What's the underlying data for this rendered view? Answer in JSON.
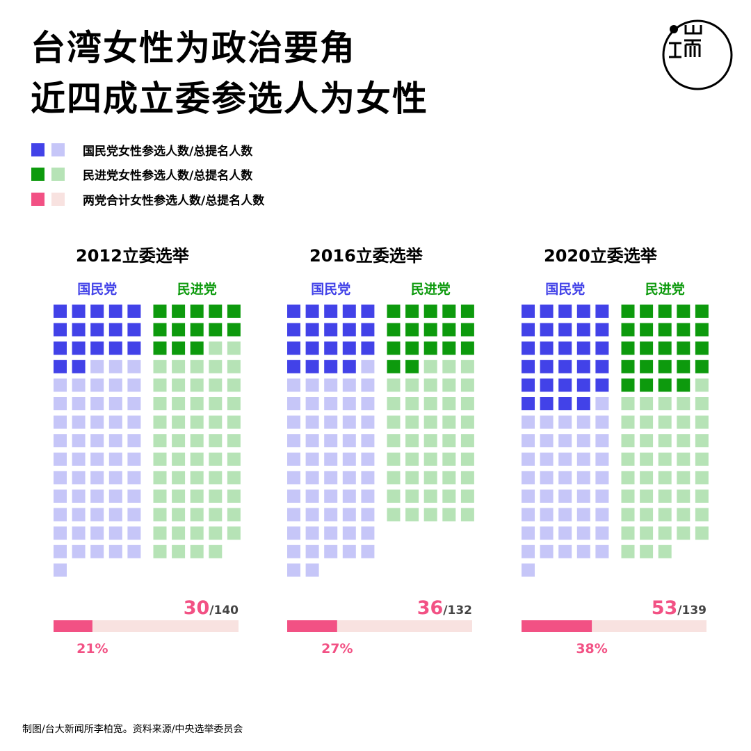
{
  "title": {
    "line1": "台湾女性为政治要角",
    "line2": "近四成立委参选人为女性"
  },
  "legend": [
    {
      "label": "国民党女性参选人数/总提名人数",
      "dark": "#4242e8",
      "light": "#c6c6f8"
    },
    {
      "label": "民进党女性参选人数/总提名人数",
      "dark": "#0d9a0d",
      "light": "#b6e3b6"
    },
    {
      "label": "两党合计女性参选人数/总提名人数",
      "dark": "#f25184",
      "light": "#f8e2e0"
    }
  ],
  "chart_data": {
    "type": "waffle",
    "panels": [
      {
        "title": "2012立委选举",
        "parties": [
          {
            "name": "国民党",
            "women": 17,
            "total": 71
          },
          {
            "name": "民进党",
            "women": 13,
            "total": 69
          }
        ],
        "combined_women": 30,
        "combined_label": "30",
        "total_label": "/140",
        "percent_value": 21,
        "percent_label": "21%"
      },
      {
        "title": "2016立委选举",
        "parties": [
          {
            "name": "国民党",
            "women": 19,
            "total": 72
          },
          {
            "name": "民进党",
            "women": 17,
            "total": 60
          }
        ],
        "combined_women": 36,
        "combined_label": "36",
        "total_label": "/132",
        "percent_value": 27,
        "percent_label": "27%"
      },
      {
        "title": "2020立委选举",
        "parties": [
          {
            "name": "国民党",
            "women": 29,
            "total": 71
          },
          {
            "name": "民进党",
            "women": 24,
            "total": 68
          }
        ],
        "combined_women": 53,
        "combined_label": "53",
        "total_label": "/139",
        "percent_value": 38,
        "percent_label": "38%"
      }
    ],
    "colors": {
      "kmt_women": "#4242e8",
      "kmt_total": "#c6c6f8",
      "dpp_women": "#0d9a0d",
      "dpp_total": "#b6e3b6",
      "pct_fill": "#f25184",
      "pct_track": "#f8e2e0",
      "party_kmt_label": "#4242e8",
      "party_dpp_label": "#0d9a0d",
      "number_color": "#f25184",
      "total_color": "#444444"
    }
  },
  "footer": "制图/台大新闻所李柏宽。资料来源/中央选举委员会"
}
